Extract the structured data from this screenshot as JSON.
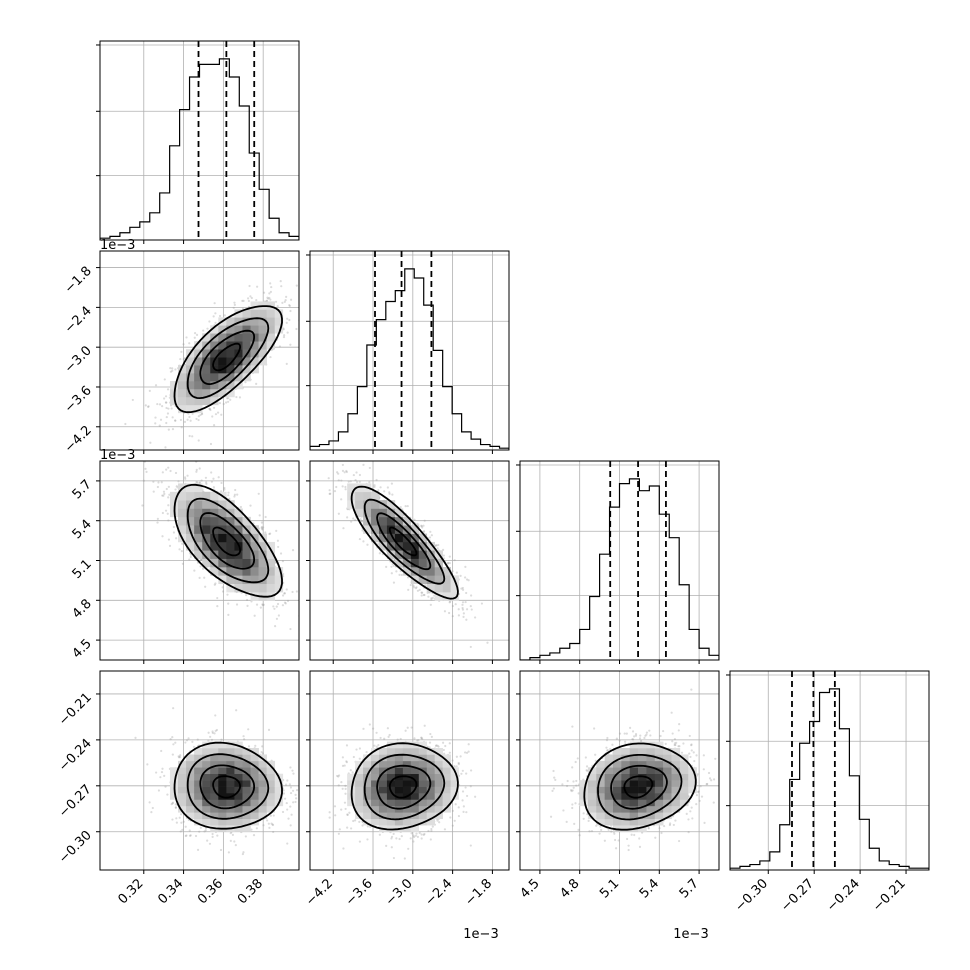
{
  "chart_data": {
    "type": "corner",
    "description_source": "posterior samples corner plot, 4 parameters",
    "grid": true,
    "quantile_lines": "dashed",
    "parameters": [
      {
        "range": [
          0.298,
          0.398
        ],
        "ticks": [
          0.32,
          0.34,
          0.36,
          0.38
        ],
        "tick_labels": [
          "0.32",
          "0.34",
          "0.36",
          "0.38"
        ],
        "offset_text": "",
        "quantiles": [
          0.3475,
          0.3615,
          0.3755
        ],
        "hist": [
          0.01,
          0.02,
          0.04,
          0.07,
          0.1,
          0.15,
          0.26,
          0.52,
          0.72,
          0.9,
          0.97,
          0.97,
          1.0,
          0.9,
          0.74,
          0.48,
          0.28,
          0.12,
          0.04,
          0.02
        ],
        "mean": 0.3615,
        "std": 0.0135
      },
      {
        "range": [
          -4.55,
          -1.55
        ],
        "ticks": [
          -4.2,
          -3.6,
          -3.0,
          -2.4,
          -1.8
        ],
        "tick_labels": [
          "−4.2",
          "−3.6",
          "−3.0",
          "−2.4",
          "−1.8"
        ],
        "offset_text": "1e−3",
        "quantiles": [
          -3.57,
          -3.17,
          -2.72
        ],
        "hist": [
          0.02,
          0.03,
          0.05,
          0.1,
          0.2,
          0.35,
          0.58,
          0.72,
          0.82,
          0.88,
          1.0,
          0.95,
          0.8,
          0.55,
          0.35,
          0.2,
          0.1,
          0.06,
          0.03,
          0.02,
          0.01
        ],
        "mean": -3.15,
        "std": 0.4
      },
      {
        "range": [
          4.35,
          5.85
        ],
        "ticks": [
          4.5,
          4.8,
          5.1,
          5.4,
          5.7
        ],
        "tick_labels": [
          "4.5",
          "4.8",
          "5.1",
          "5.4",
          "5.7"
        ],
        "offset_text": "1e−3",
        "quantiles": [
          5.03,
          5.24,
          5.45
        ],
        "hist": [
          0.0,
          0.01,
          0.02,
          0.03,
          0.05,
          0.07,
          0.13,
          0.27,
          0.45,
          0.65,
          0.75,
          0.77,
          0.72,
          0.74,
          0.62,
          0.52,
          0.32,
          0.13,
          0.05,
          0.02
        ],
        "mean": 5.24,
        "std": 0.21
      },
      {
        "range": [
          -0.325,
          -0.195
        ],
        "ticks": [
          -0.3,
          -0.27,
          -0.24,
          -0.21
        ],
        "tick_labels": [
          "−0.30",
          "−0.27",
          "−0.24",
          "−0.21"
        ],
        "offset_text": "",
        "quantiles": [
          -0.2845,
          -0.2705,
          -0.2565
        ],
        "hist": [
          0.01,
          0.02,
          0.03,
          0.05,
          0.1,
          0.25,
          0.5,
          0.7,
          0.82,
          0.98,
          1.0,
          0.78,
          0.52,
          0.28,
          0.12,
          0.05,
          0.03,
          0.02,
          0.01,
          0.01
        ],
        "mean": -0.2705,
        "std": 0.014
      }
    ],
    "correlations": [
      {
        "x": 0,
        "y": 1,
        "rho": 0.7
      },
      {
        "x": 0,
        "y": 2,
        "rho": -0.65
      },
      {
        "x": 1,
        "y": 2,
        "rho": -0.85
      },
      {
        "x": 0,
        "y": 3,
        "rho": -0.05
      },
      {
        "x": 1,
        "y": 3,
        "rho": 0.1
      },
      {
        "x": 2,
        "y": 3,
        "rho": 0.15
      }
    ]
  }
}
